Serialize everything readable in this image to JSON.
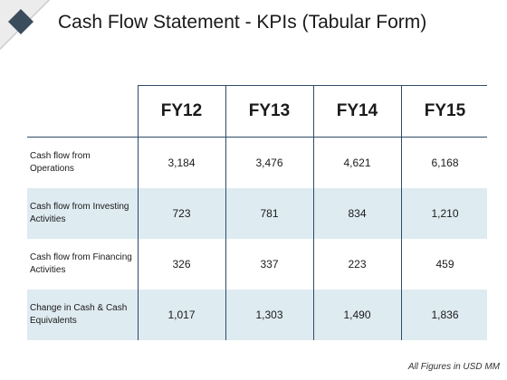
{
  "slide": {
    "title": "Cash Flow Statement - KPIs (Tabular Form)",
    "logo_icon": "diamond-logo-icon",
    "accent_color": "#2e4c66",
    "shade_color": "#deebf1"
  },
  "table": {
    "headers": [
      "FY12",
      "FY13",
      "FY14",
      "FY15"
    ],
    "rows": [
      {
        "label": "Cash flow from Operations",
        "values": [
          "3,184",
          "3,476",
          "4,621",
          "6,168"
        ]
      },
      {
        "label": "Cash flow from Investing Activities",
        "values": [
          "723",
          "781",
          "834",
          "1,210"
        ]
      },
      {
        "label": "Cash flow from Financing Activities",
        "values": [
          "326",
          "337",
          "223",
          "459"
        ]
      },
      {
        "label": "Change in Cash & Cash Equivalents",
        "values": [
          "1,017",
          "1,303",
          "1,490",
          "1,836"
        ]
      }
    ]
  },
  "footnote": "All Figures in USD MM"
}
